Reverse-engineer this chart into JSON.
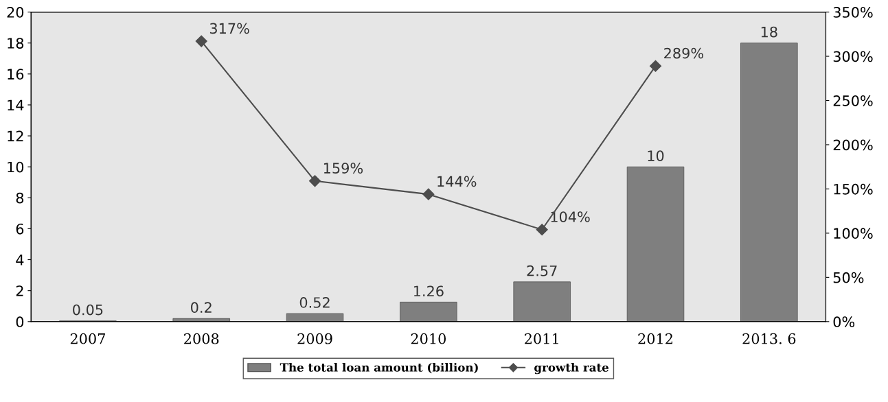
{
  "chart_data": {
    "type": "bar",
    "categories": [
      "2007",
      "2008",
      "2009",
      "2010",
      "2011",
      "2012",
      "2013. 6"
    ],
    "series": [
      {
        "name": "The total loan amount (billion)",
        "color": "#7f7f7f",
        "values": [
          0.05,
          0.2,
          0.52,
          1.26,
          2.57,
          10,
          18
        ],
        "data_labels": true
      },
      {
        "name": "growth rate",
        "type": "line",
        "axis": "y2",
        "color": "#4d4d4d",
        "marker": "diamond",
        "line_style": "solid",
        "values": [
          null,
          317,
          159,
          144,
          104,
          289,
          null
        ],
        "value_labels": [
          null,
          "317%",
          "159%",
          "144%",
          "104%",
          "289%",
          null
        ]
      }
    ],
    "ylim": [
      0,
      20
    ],
    "yticks": [
      0,
      2,
      4,
      6,
      8,
      10,
      12,
      14,
      16,
      18,
      20
    ],
    "y2lim": [
      0,
      350
    ],
    "y2ticks": [
      {
        "value": 0,
        "label": "0%"
      },
      {
        "value": 50,
        "label": "50%"
      },
      {
        "value": 100,
        "label": "100%"
      },
      {
        "value": 150,
        "label": "150%"
      },
      {
        "value": 200,
        "label": "200%"
      },
      {
        "value": 250,
        "label": "250%"
      },
      {
        "value": 300,
        "label": "300%"
      },
      {
        "value": 350,
        "label": "350%"
      }
    ],
    "grid": false,
    "legend": "bottom"
  }
}
